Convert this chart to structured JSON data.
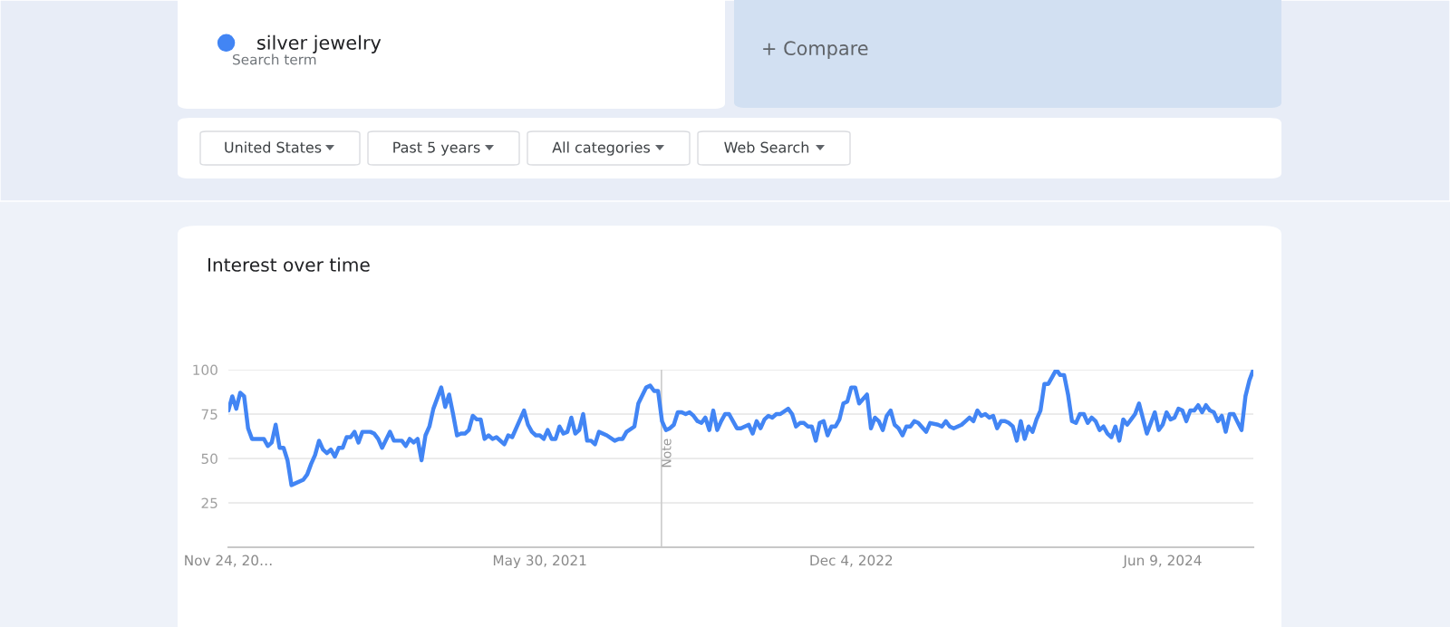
{
  "chart_data": {
    "type": "line",
    "title": "Interest over time",
    "annotations": [
      "Search term",
      "+ Compare",
      "United States",
      "Past 5 years",
      "All categories",
      "Web Search"
    ],
    "x": [
      "2019-11-24",
      "2019-12-01",
      "2019-12-08",
      "2019-12-15",
      "2019-12-22",
      "2019-12-29",
      "2020-01-05",
      "2020-01-26",
      "2020-02-02",
      "2020-02-09",
      "2020-02-16",
      "2020-02-23",
      "2020-03-01",
      "2020-03-08",
      "2020-03-15",
      "2020-04-05",
      "2020-04-12",
      "2020-04-19",
      "2020-04-26",
      "2020-05-03",
      "2020-05-10",
      "2020-05-17",
      "2020-05-24",
      "2020-05-31",
      "2020-06-07",
      "2020-06-14",
      "2020-06-21",
      "2020-06-28",
      "2020-07-05",
      "2020-07-12",
      "2020-07-19",
      "2020-08-02",
      "2020-08-09",
      "2020-08-16",
      "2020-08-23",
      "2020-09-06",
      "2020-09-13",
      "2020-09-27",
      "2020-10-04",
      "2020-10-11",
      "2020-10-18",
      "2020-10-25",
      "2020-11-01",
      "2020-11-08",
      "2020-11-15",
      "2020-11-22",
      "2020-11-29",
      "2020-12-06",
      "2020-12-13",
      "2020-12-20",
      "2020-12-27",
      "2021-01-03",
      "2021-01-10",
      "2021-01-17",
      "2021-01-24",
      "2021-01-31",
      "2021-02-07",
      "2021-02-14",
      "2021-02-21",
      "2021-02-28",
      "2021-03-07",
      "2021-03-14",
      "2021-03-28",
      "2021-04-04",
      "2021-04-11",
      "2021-05-02",
      "2021-05-09",
      "2021-05-16",
      "2021-05-23",
      "2021-05-30",
      "2021-06-06",
      "2021-06-13",
      "2021-06-20",
      "2021-06-27",
      "2021-07-04",
      "2021-07-11",
      "2021-07-18",
      "2021-07-25",
      "2021-08-01",
      "2021-08-08",
      "2021-08-15",
      "2021-08-22",
      "2021-08-29",
      "2021-09-05",
      "2021-09-12",
      "2021-09-26",
      "2021-10-10",
      "2021-10-17",
      "2021-10-24",
      "2021-10-31",
      "2021-11-14",
      "2021-11-21",
      "2021-12-05",
      "2021-12-12",
      "2021-12-19",
      "2021-12-26",
      "2022-01-02",
      "2022-01-09",
      "2022-01-16",
      "2022-01-23",
      "2022-01-30",
      "2022-02-06",
      "2022-02-13",
      "2022-02-20",
      "2022-02-27",
      "2022-03-06",
      "2022-03-13",
      "2022-03-20",
      "2022-03-27",
      "2022-04-03",
      "2022-04-10",
      "2022-04-17",
      "2022-04-24",
      "2022-05-01",
      "2022-05-15",
      "2022-05-22",
      "2022-06-05",
      "2022-06-12",
      "2022-06-19",
      "2022-06-26",
      "2022-07-03",
      "2022-07-10",
      "2022-07-17",
      "2022-07-24",
      "2022-07-31",
      "2022-08-14",
      "2022-08-21",
      "2022-08-28",
      "2022-09-04",
      "2022-09-11",
      "2022-09-18",
      "2022-09-25",
      "2022-10-02",
      "2022-10-09",
      "2022-10-16",
      "2022-10-23",
      "2022-10-30",
      "2022-11-06",
      "2022-11-13",
      "2022-11-20",
      "2022-11-27",
      "2022-12-04",
      "2022-12-11",
      "2022-12-18",
      "2023-01-01",
      "2023-01-08",
      "2023-01-15",
      "2023-01-22",
      "2023-01-29",
      "2023-02-05",
      "2023-02-12",
      "2023-02-19",
      "2023-02-26",
      "2023-03-05",
      "2023-03-12",
      "2023-03-19",
      "2023-03-26",
      "2023-04-02",
      "2023-04-16",
      "2023-04-23",
      "2023-05-07",
      "2023-05-14",
      "2023-05-21",
      "2023-05-28",
      "2023-06-04",
      "2023-06-18",
      "2023-06-25",
      "2023-07-02",
      "2023-07-09",
      "2023-07-16",
      "2023-07-23",
      "2023-07-30",
      "2023-08-06",
      "2023-08-13",
      "2023-08-20",
      "2023-08-27",
      "2023-09-03",
      "2023-09-10",
      "2023-09-17",
      "2023-09-24",
      "2023-10-01",
      "2023-10-08",
      "2023-10-15",
      "2023-10-22",
      "2023-10-29",
      "2023-11-05",
      "2023-11-12",
      "2023-11-19",
      "2023-11-26",
      "2023-12-03",
      "2023-12-10",
      "2023-12-17",
      "2023-12-24",
      "2023-12-31",
      "2024-01-07",
      "2024-01-14",
      "2024-01-21",
      "2024-01-28",
      "2024-02-04",
      "2024-02-11",
      "2024-02-18",
      "2024-02-25",
      "2024-03-03",
      "2024-03-10",
      "2024-03-17",
      "2024-03-24",
      "2024-03-31",
      "2024-04-07",
      "2024-04-14",
      "2024-04-21",
      "2024-04-28",
      "2024-05-12",
      "2024-05-26",
      "2024-06-02",
      "2024-06-09",
      "2024-06-16",
      "2024-06-23",
      "2024-06-30",
      "2024-07-07",
      "2024-07-14",
      "2024-07-21",
      "2024-07-28",
      "2024-08-04",
      "2024-08-11",
      "2024-08-18",
      "2024-08-25",
      "2024-09-01",
      "2024-09-08",
      "2024-09-15",
      "2024-09-22",
      "2024-09-29",
      "2024-10-06",
      "2024-10-13",
      "2024-10-27",
      "2024-11-03",
      "2024-11-10",
      "2024-11-17"
    ],
    "series": [
      {
        "name": "silver jewelry",
        "color": "#4285f4",
        "values": [
          77,
          85,
          78,
          87,
          85,
          67,
          61,
          61,
          57,
          59,
          69,
          56,
          56,
          49,
          35,
          38,
          41,
          47,
          52,
          60,
          55,
          53,
          55,
          51,
          56,
          56,
          62,
          62,
          65,
          59,
          65,
          65,
          64,
          61,
          56,
          65,
          60,
          60,
          57,
          61,
          59,
          61,
          49,
          63,
          68,
          78,
          84,
          90,
          79,
          86,
          75,
          63,
          64,
          64,
          66,
          74,
          72,
          72,
          61,
          63,
          61,
          62,
          58,
          63,
          62,
          77,
          69,
          65,
          63,
          63,
          61,
          66,
          61,
          61,
          68,
          64,
          65,
          73,
          64,
          66,
          75,
          60,
          60,
          58,
          65,
          63,
          60,
          61,
          61,
          65,
          68,
          81,
          90,
          91,
          88,
          88,
          71,
          66,
          67,
          69,
          76,
          76,
          75,
          76,
          74,
          71,
          70,
          73,
          66,
          77,
          66,
          71,
          75,
          75,
          67,
          67,
          69,
          64,
          71,
          67,
          72,
          74,
          73,
          75,
          75,
          78,
          75,
          68,
          70,
          70,
          68,
          68,
          60,
          70,
          71,
          63,
          68,
          68,
          72,
          81,
          82,
          90,
          90,
          81,
          86,
          67,
          73,
          71,
          66,
          74,
          77,
          69,
          67,
          63,
          68,
          68,
          71,
          70,
          65,
          70,
          69,
          68,
          71,
          68,
          67,
          69,
          71,
          73,
          71,
          77,
          74,
          75,
          73,
          74,
          67,
          71,
          71,
          70,
          68,
          60,
          71,
          61,
          68,
          65,
          72,
          77,
          92,
          92,
          96,
          100,
          97,
          97,
          86,
          71,
          70,
          75,
          75,
          70,
          73,
          71,
          66,
          68,
          64,
          62,
          68,
          60,
          72,
          69,
          72,
          75,
          81,
          64,
          76,
          66,
          69,
          76,
          72,
          73,
          78,
          77,
          71,
          77,
          77,
          80,
          76,
          80,
          77,
          76,
          71,
          74,
          65,
          75,
          75,
          66,
          85,
          94,
          100
        ]
      }
    ],
    "xlim": [
      "2019-11-24",
      "2024-11-17"
    ],
    "xticks": [
      {
        "value": "2019-11-24",
        "label": "Nov 24, 20…"
      },
      {
        "value": "2021-05-30",
        "label": "May 30, 2021"
      },
      {
        "value": "2022-12-04",
        "label": "Dec 4, 2022"
      },
      {
        "value": "2024-06-09",
        "label": "Jun 9, 2024"
      }
    ],
    "ylim": [
      0,
      100
    ],
    "yticks": [
      25,
      50,
      75,
      100
    ],
    "ref_lines": [
      {
        "axis": "x",
        "value": "2022-01-01",
        "label": "Note",
        "color": "#cccccc"
      }
    ],
    "grid": "y",
    "legend": "top left",
    "marker": "none",
    "line_style": "solid"
  }
}
